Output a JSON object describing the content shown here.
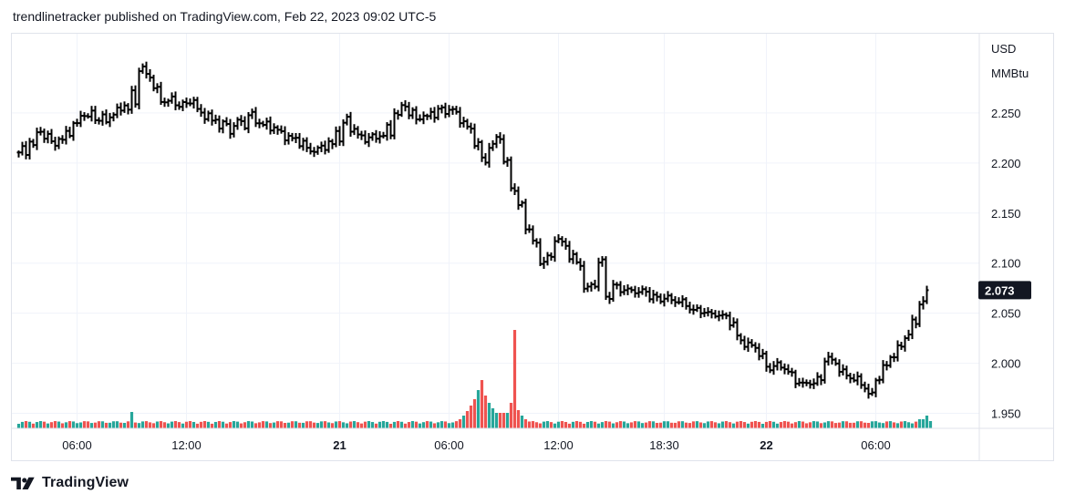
{
  "header": {
    "text": "trendlinetracker published on TradingView.com, Feb 22, 2023 09:02 UTC-5"
  },
  "footer": {
    "brand": "TradingView",
    "logo_icon": "tradingview-logo-icon"
  },
  "chart_data": {
    "type": "ohlc-bar",
    "currency": "USD",
    "unit": "MMBtu",
    "last_price": "2.073",
    "last_price_color": "#131722",
    "y_ticks": [
      "2.250",
      "2.200",
      "2.150",
      "2.100",
      "2.050",
      "2.000",
      "1.950"
    ],
    "ylim": [
      1.935,
      2.33
    ],
    "x_ticks": [
      {
        "label": "06:00",
        "bar": 16,
        "bold": false
      },
      {
        "label": "12:00",
        "bar": 46,
        "bold": false
      },
      {
        "label": "21",
        "bar": 88,
        "bold": true
      },
      {
        "label": "06:00",
        "bar": 118,
        "bold": false
      },
      {
        "label": "12:00",
        "bar": 148,
        "bold": false
      },
      {
        "label": "18:30",
        "bar": 177,
        "bold": false
      },
      {
        "label": "22",
        "bar": 205,
        "bold": true
      },
      {
        "label": "06:00",
        "bar": 235,
        "bold": false
      }
    ],
    "bar_count": 254,
    "colors": {
      "up_volume": "#26a69a",
      "down_volume": "#ef5350",
      "price": "#000000",
      "grid": "#f0f3fa"
    },
    "anchors": [
      [
        0,
        2.209
      ],
      [
        2,
        2.218
      ],
      [
        4,
        2.232
      ],
      [
        6,
        2.226
      ],
      [
        9,
        2.221
      ],
      [
        12,
        2.228
      ],
      [
        15,
        2.238
      ],
      [
        17,
        2.25
      ],
      [
        20,
        2.242
      ],
      [
        24,
        2.248
      ],
      [
        27,
        2.252
      ],
      [
        30,
        2.262
      ],
      [
        33,
        2.293
      ],
      [
        35,
        2.287
      ],
      [
        37,
        2.275
      ],
      [
        39,
        2.263
      ],
      [
        42,
        2.258
      ],
      [
        45,
        2.26
      ],
      [
        47,
        2.262
      ],
      [
        49,
        2.25
      ],
      [
        52,
        2.245
      ],
      [
        54,
        2.238
      ],
      [
        56,
        2.232
      ],
      [
        58,
        2.242
      ],
      [
        60,
        2.236
      ],
      [
        62,
        2.248
      ],
      [
        64,
        2.243
      ],
      [
        66,
        2.24
      ],
      [
        68,
        2.235
      ],
      [
        70,
        2.232
      ],
      [
        72,
        2.228
      ],
      [
        74,
        2.225
      ],
      [
        76,
        2.22
      ],
      [
        78,
        2.215
      ],
      [
        80,
        2.213
      ],
      [
        82,
        2.214
      ],
      [
        84,
        2.217
      ],
      [
        86,
        2.225
      ],
      [
        88,
        2.243
      ],
      [
        90,
        2.235
      ],
      [
        92,
        2.228
      ],
      [
        94,
        2.226
      ],
      [
        96,
        2.223
      ],
      [
        98,
        2.227
      ],
      [
        100,
        2.23
      ],
      [
        102,
        2.245
      ],
      [
        104,
        2.258
      ],
      [
        106,
        2.252
      ],
      [
        108,
        2.246
      ],
      [
        110,
        2.243
      ],
      [
        112,
        2.248
      ],
      [
        114,
        2.255
      ],
      [
        116,
        2.253
      ],
      [
        118,
        2.249
      ],
      [
        119,
        2.25
      ],
      [
        121,
        2.243
      ],
      [
        123,
        2.235
      ],
      [
        125,
        2.218
      ],
      [
        127,
        2.203
      ],
      [
        129,
        2.218
      ],
      [
        131,
        2.225
      ],
      [
        133,
        2.2
      ],
      [
        135,
        2.176
      ],
      [
        137,
        2.158
      ],
      [
        139,
        2.134
      ],
      [
        141,
        2.12
      ],
      [
        143,
        2.103
      ],
      [
        145,
        2.105
      ],
      [
        147,
        2.123
      ],
      [
        149,
        2.12
      ],
      [
        151,
        2.107
      ],
      [
        153,
        2.098
      ],
      [
        155,
        2.075
      ],
      [
        157,
        2.08
      ],
      [
        159,
        2.1
      ],
      [
        161,
        2.066
      ],
      [
        163,
        2.078
      ],
      [
        165,
        2.074
      ],
      [
        167,
        2.071
      ],
      [
        169,
        2.072
      ],
      [
        171,
        2.073
      ],
      [
        173,
        2.066
      ],
      [
        175,
        2.063
      ],
      [
        177,
        2.067
      ],
      [
        179,
        2.063
      ],
      [
        181,
        2.06
      ],
      [
        183,
        2.057
      ],
      [
        185,
        2.054
      ],
      [
        187,
        2.051
      ],
      [
        189,
        2.048
      ],
      [
        191,
        2.05
      ],
      [
        193,
        2.047
      ],
      [
        195,
        2.039
      ],
      [
        197,
        2.025
      ],
      [
        199,
        2.02
      ],
      [
        201,
        2.016
      ],
      [
        203,
        2.007
      ],
      [
        205,
        1.997
      ],
      [
        207,
        1.998
      ],
      [
        209,
        1.995
      ],
      [
        211,
        1.99
      ],
      [
        213,
        1.983
      ],
      [
        215,
        1.978
      ],
      [
        217,
        1.98
      ],
      [
        219,
        1.985
      ],
      [
        221,
        2.005
      ],
      [
        223,
        2.0
      ],
      [
        225,
        1.993
      ],
      [
        227,
        1.988
      ],
      [
        229,
        1.983
      ],
      [
        231,
        1.977
      ],
      [
        233,
        1.97
      ],
      [
        235,
        1.985
      ],
      [
        237,
        1.995
      ],
      [
        239,
        2.008
      ],
      [
        241,
        2.017
      ],
      [
        243,
        2.027
      ],
      [
        245,
        2.04
      ],
      [
        247,
        2.062
      ],
      [
        249,
        2.073
      ]
    ],
    "volume_events": [
      {
        "bar": 31,
        "height": 18
      },
      {
        "bar": 121,
        "height": 10
      },
      {
        "bar": 122,
        "height": 14
      },
      {
        "bar": 123,
        "height": 19
      },
      {
        "bar": 124,
        "height": 25
      },
      {
        "bar": 125,
        "height": 32
      },
      {
        "bar": 126,
        "height": 42
      },
      {
        "bar": 127,
        "height": 53
      },
      {
        "bar": 128,
        "height": 36
      },
      {
        "bar": 129,
        "height": 28
      },
      {
        "bar": 130,
        "height": 22
      },
      {
        "bar": 131,
        "height": 17
      },
      {
        "bar": 132,
        "height": 17
      },
      {
        "bar": 133,
        "height": 17
      },
      {
        "bar": 134,
        "height": 17
      },
      {
        "bar": 135,
        "height": 28
      },
      {
        "bar": 136,
        "height": 108
      },
      {
        "bar": 137,
        "height": 20
      },
      {
        "bar": 138,
        "height": 14
      },
      {
        "bar": 139,
        "height": 10
      },
      {
        "bar": 247,
        "height": 10
      },
      {
        "bar": 248,
        "height": 10
      },
      {
        "bar": 249,
        "height": 14
      },
      {
        "bar": 250,
        "height": 8
      }
    ]
  }
}
